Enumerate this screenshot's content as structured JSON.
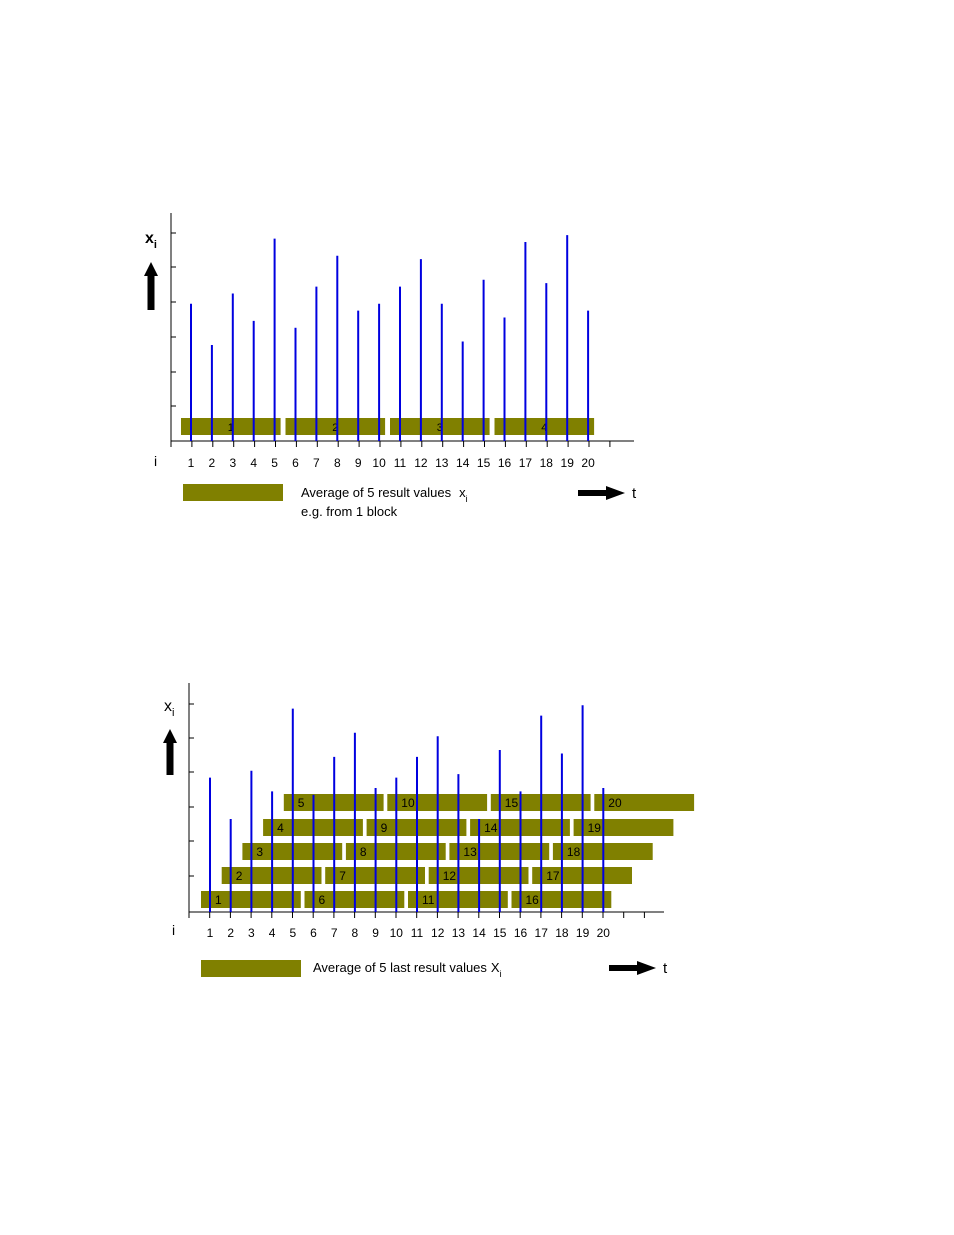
{
  "colors": {
    "spike": "#0000e0",
    "bar": "#808000",
    "axis": "#000000",
    "text": "#000000"
  },
  "chart_data": [
    {
      "type": "bar",
      "title": "",
      "ylabel": "x",
      "ylabel_sub": "i",
      "xlabel": "t",
      "index_label": "i",
      "x": [
        1,
        2,
        3,
        4,
        5,
        6,
        7,
        8,
        9,
        10,
        11,
        12,
        13,
        14,
        15,
        16,
        17,
        18,
        19,
        20
      ],
      "values": [
        4.0,
        2.8,
        4.3,
        3.5,
        5.9,
        3.3,
        4.5,
        5.4,
        3.8,
        4.0,
        4.5,
        5.3,
        4.0,
        2.9,
        4.7,
        3.6,
        5.8,
        4.6,
        6.0,
        3.8
      ],
      "ylim": [
        0,
        6.5
      ],
      "blocks": [
        {
          "label": "1",
          "from": 1,
          "to": 5
        },
        {
          "label": "2",
          "from": 6,
          "to": 10
        },
        {
          "label": "3",
          "from": 11,
          "to": 15
        },
        {
          "label": "4",
          "from": 16,
          "to": 20
        }
      ],
      "legend": {
        "text": "Average of 5 result values",
        "symbol": "x",
        "symbol_sub": "i",
        "line2": "e.g. from 1 block"
      }
    },
    {
      "type": "bar",
      "title": "",
      "ylabel": "x",
      "ylabel_sub": "i",
      "xlabel": "t",
      "index_label": "i",
      "x": [
        1,
        2,
        3,
        4,
        5,
        6,
        7,
        8,
        9,
        10,
        11,
        12,
        13,
        14,
        15,
        16,
        17,
        18,
        19,
        20
      ],
      "values": [
        3.9,
        2.7,
        4.1,
        3.5,
        5.9,
        3.4,
        4.5,
        5.2,
        3.6,
        3.9,
        4.5,
        5.1,
        4.0,
        2.7,
        4.7,
        3.5,
        5.7,
        4.6,
        6.0,
        3.6
      ],
      "ylim": [
        0,
        6.5
      ],
      "windows": [
        {
          "label": "1",
          "end": 1
        },
        {
          "label": "2",
          "end": 2
        },
        {
          "label": "3",
          "end": 3
        },
        {
          "label": "4",
          "end": 4
        },
        {
          "label": "5",
          "end": 5
        },
        {
          "label": "6",
          "end": 6
        },
        {
          "label": "7",
          "end": 7
        },
        {
          "label": "8",
          "end": 8
        },
        {
          "label": "9",
          "end": 9
        },
        {
          "label": "10",
          "end": 10
        },
        {
          "label": "11",
          "end": 11
        },
        {
          "label": "12",
          "end": 12
        },
        {
          "label": "13",
          "end": 13
        },
        {
          "label": "14",
          "end": 14
        },
        {
          "label": "15",
          "end": 15
        },
        {
          "label": "16",
          "end": 16
        },
        {
          "label": "17",
          "end": 17
        },
        {
          "label": "18",
          "end": 18
        },
        {
          "label": "19",
          "end": 19
        },
        {
          "label": "20",
          "end": 20
        }
      ],
      "legend": {
        "text": "Average of 5 last result values",
        "symbol": "X",
        "symbol_sub": "i"
      }
    }
  ]
}
